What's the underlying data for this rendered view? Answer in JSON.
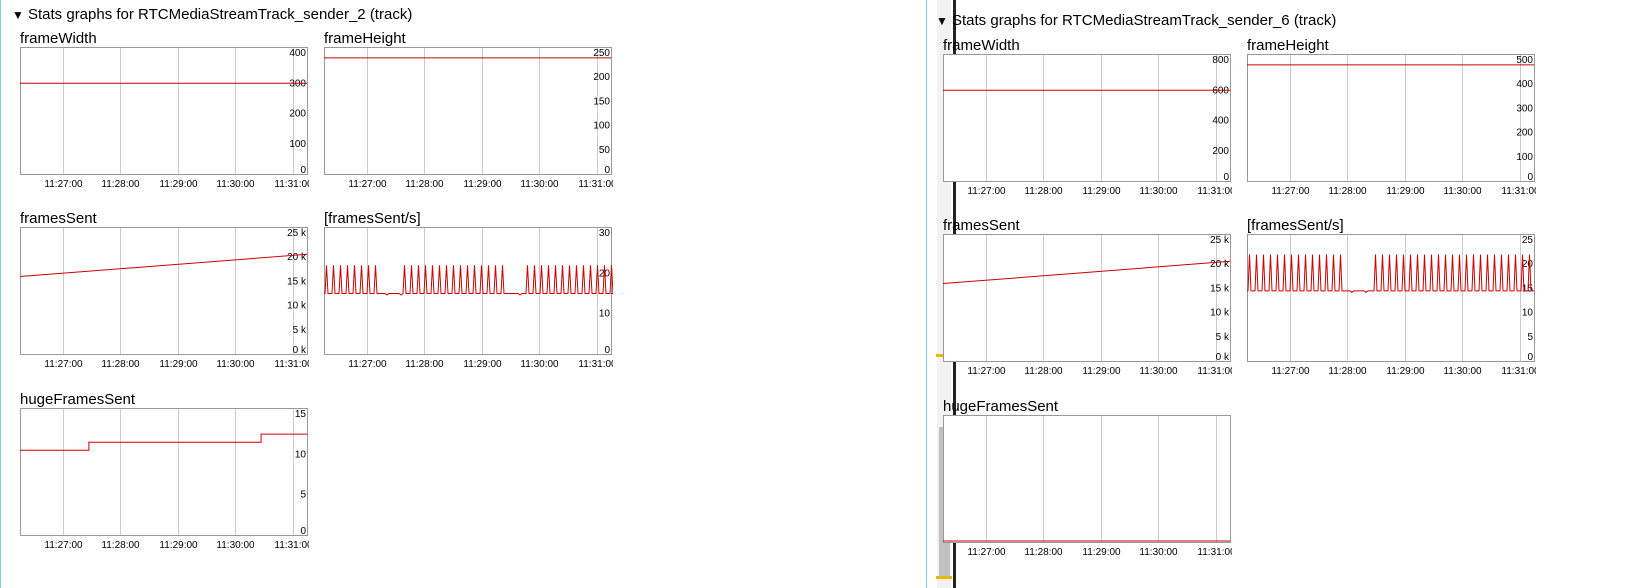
{
  "sections": [
    {
      "title": "Stats graphs for RTCMediaStreamTrack_sender_2 (track)",
      "graphs": [
        {
          "key": "frameWidth",
          "title": "frameWidth",
          "yticks": [
            "400",
            "300",
            "200",
            "100",
            "0"
          ],
          "ymax": 400,
          "xticks": [
            "11:27:00",
            "11:28:00",
            "11:29:00",
            "11:30:00",
            "11:31:00"
          ],
          "series": {
            "type": "flat",
            "y": 300
          }
        },
        {
          "key": "frameHeight",
          "title": "frameHeight",
          "yticks": [
            "250",
            "200",
            "150",
            "100",
            "50",
            "0"
          ],
          "ymax": 250,
          "xticks": [
            "11:27:00",
            "11:28:00",
            "11:29:00",
            "11:30:00",
            "11:31:00"
          ],
          "series": {
            "type": "flat",
            "y": 240
          }
        },
        {
          "key": "framesSent",
          "title": "framesSent",
          "yticks": [
            "25 k",
            "20 k",
            "15 k",
            "10 k",
            "5 k",
            "0 k"
          ],
          "ymax": 25000,
          "xticks": [
            "11:27:00",
            "11:28:00",
            "11:29:00",
            "11:30:00",
            "11:31:00"
          ],
          "series": {
            "type": "linear",
            "y0": 16000,
            "y1": 20600
          }
        },
        {
          "key": "framesSentRate",
          "title": "[framesSent/s]",
          "yticks": [
            "30",
            "20",
            "10",
            "0"
          ],
          "ymax": 30,
          "xticks": [
            "11:27:00",
            "11:28:00",
            "11:29:00",
            "11:30:00",
            "11:31:00"
          ],
          "series": {
            "type": "spiky",
            "base": 15,
            "peak": 22,
            "spikes": [
              0.01,
              0.035,
              0.06,
              0.085,
              0.11,
              0.135,
              0.16,
              0.185,
              0.21,
              0.235,
              0.26,
              0.285,
              0.31,
              0.28,
              0.35,
              0.28,
              0.275,
              0.29,
              0.3,
              0.31,
              0.32,
              0.33,
              0.34,
              0.35,
              0.36,
              0.37,
              0.38,
              0.39,
              0.4,
              0.41,
              0.42,
              0.43,
              0.44,
              0.45,
              0.46,
              0.47,
              0.48,
              0.49,
              0.5,
              0.51,
              0.52,
              0.53,
              0.54,
              0.55,
              0.56,
              0.57,
              0.58,
              0.59,
              0.6,
              0.61
            ],
            "gaps": [
              [
                0.19,
                0.27
              ],
              [
                0.64,
                0.7
              ]
            ]
          }
        },
        {
          "key": "hugeFramesSent",
          "title": "hugeFramesSent",
          "yticks": [
            "15",
            "10",
            "5",
            "0"
          ],
          "ymax": 15,
          "xticks": [
            "11:27:00",
            "11:28:00",
            "11:29:00",
            "11:30:00",
            "11:31:00"
          ],
          "series": {
            "type": "step",
            "steps": [
              [
                0,
                10.5
              ],
              [
                0.24,
                11.5
              ],
              [
                0.84,
                12.5
              ]
            ]
          }
        }
      ]
    },
    {
      "title": "Stats graphs for RTCMediaStreamTrack_sender_6 (track)",
      "graphs": [
        {
          "key": "frameWidth",
          "title": "frameWidth",
          "yticks": [
            "800",
            "600",
            "400",
            "200",
            "0"
          ],
          "ymax": 800,
          "xticks": [
            "11:27:00",
            "11:28:00",
            "11:29:00",
            "11:30:00",
            "11:31:00"
          ],
          "series": {
            "type": "flat",
            "y": 600
          }
        },
        {
          "key": "frameHeight",
          "title": "frameHeight",
          "yticks": [
            "500",
            "400",
            "300",
            "200",
            "100",
            "0"
          ],
          "ymax": 500,
          "xticks": [
            "11:27:00",
            "11:28:00",
            "11:29:00",
            "11:30:00",
            "11:31:00"
          ],
          "series": {
            "type": "flat",
            "y": 480
          }
        },
        {
          "key": "framesSent",
          "title": "framesSent",
          "yticks": [
            "25 k",
            "20 k",
            "15 k",
            "10 k",
            "5 k",
            "0 k"
          ],
          "ymax": 25000,
          "xticks": [
            "11:27:00",
            "11:28:00",
            "11:29:00",
            "11:30:00",
            "11:31:00"
          ],
          "series": {
            "type": "linear",
            "y0": 16000,
            "y1": 20600
          }
        },
        {
          "key": "framesSentRate",
          "title": "[framesSent/s]",
          "yticks": [
            "25",
            "20",
            "15",
            "10",
            "5",
            "0"
          ],
          "ymax": 25,
          "xticks": [
            "11:27:00",
            "11:28:00",
            "11:29:00",
            "11:30:00",
            "11:31:00"
          ],
          "series": {
            "type": "spiky",
            "base": 14.5,
            "peak": 22,
            "spikes": [],
            "gaps": [
              [
                0.33,
                0.44
              ]
            ]
          }
        },
        {
          "key": "hugeFramesSent",
          "title": "hugeFramesSent",
          "yticks": [],
          "ymax": 1,
          "xticks": [
            "11:27:00",
            "11:28:00",
            "11:29:00",
            "11:30:00",
            "11:31:00"
          ],
          "series": {
            "type": "flat",
            "y": 0
          }
        }
      ]
    }
  ],
  "colors": {
    "series": "#cc0000",
    "grid": "#cccccc",
    "border": "#999999",
    "panel_border": "#7fd3d3",
    "scroll_marker": "#e6b800"
  }
}
